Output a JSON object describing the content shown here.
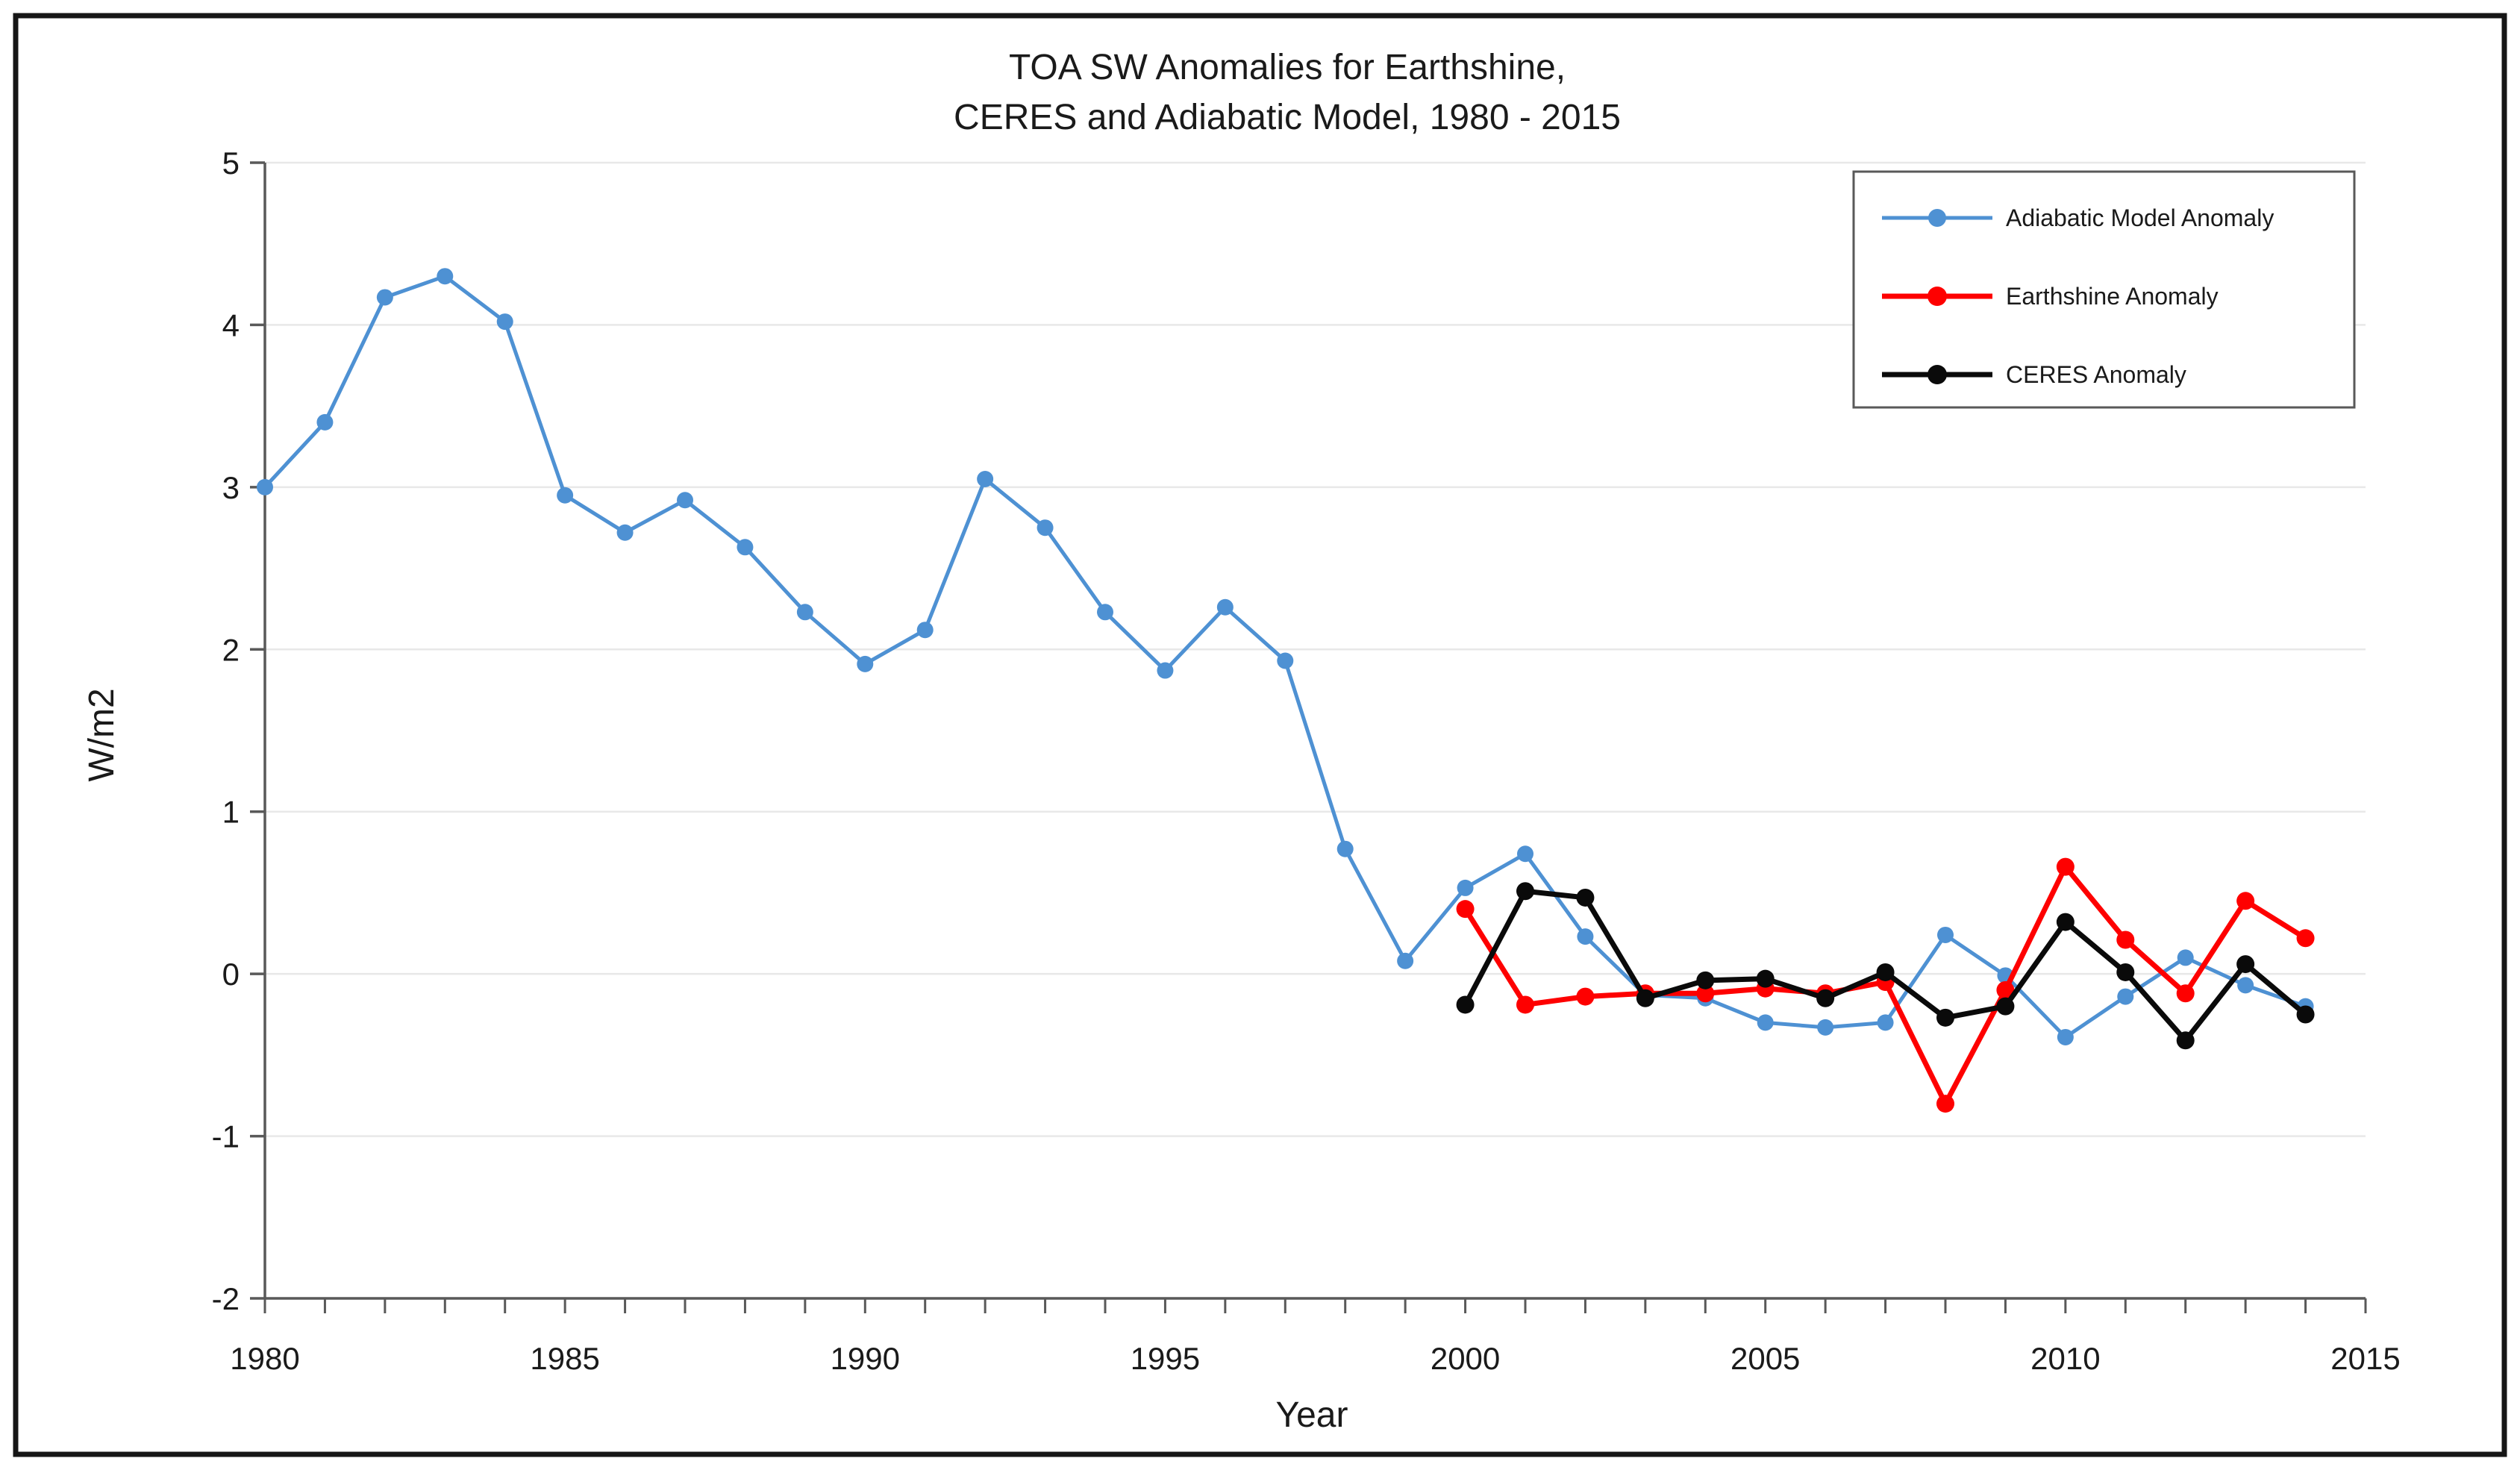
{
  "chart_data": {
    "type": "line",
    "title_line1": "TOA SW Anomalies for Earthshine,",
    "title_line2": "CERES and Adiabatic Model, 1980 - 2015",
    "xlabel": "Year",
    "ylabel": "W/m2",
    "x_range": [
      1980,
      2015
    ],
    "y_range": [
      -2,
      5
    ],
    "y_ticks": [
      5,
      4,
      3,
      2,
      1,
      0,
      -1,
      -2
    ],
    "x_ticks": [
      1980,
      1985,
      1990,
      1995,
      2000,
      2005,
      2010,
      2015
    ],
    "x_minor_tick_step": 1,
    "grid": true,
    "legend_position": "top-right",
    "colors": {
      "grid": "#e8e8e8",
      "axis": "#595959",
      "border": "#161616",
      "legend_border": "#595959",
      "background": "#ffffff"
    },
    "series": [
      {
        "name": "Adiabatic Model Anomaly",
        "color": "#4e91d3",
        "line_width": 5,
        "marker_radius": 11,
        "start_year": 1980,
        "values": [
          3.0,
          3.4,
          4.17,
          4.3,
          4.02,
          2.95,
          2.72,
          2.92,
          2.63,
          2.23,
          1.91,
          2.12,
          3.05,
          2.75,
          2.23,
          1.87,
          2.26,
          1.93,
          0.77,
          0.08,
          0.53,
          0.74,
          0.23,
          -0.13,
          -0.15,
          -0.3,
          -0.33,
          -0.3,
          0.24,
          -0.01,
          -0.39,
          -0.14,
          0.1,
          -0.07,
          -0.2
        ]
      },
      {
        "name": "Earthshine Anomaly",
        "color": "#fe0000",
        "line_width": 7,
        "marker_radius": 12,
        "start_year": 2000,
        "values": [
          0.4,
          -0.19,
          -0.14,
          -0.12,
          -0.12,
          -0.09,
          -0.12,
          -0.05,
          -0.8,
          -0.1,
          0.66,
          0.21,
          -0.12,
          0.45,
          0.22
        ]
      },
      {
        "name": "CERES Anomaly",
        "color": "#0a0a0a",
        "line_width": 7,
        "marker_radius": 12,
        "start_year": 2000,
        "values": [
          -0.19,
          0.51,
          0.47,
          -0.15,
          -0.04,
          -0.03,
          -0.15,
          0.01,
          -0.27,
          -0.2,
          0.32,
          0.01,
          -0.41,
          0.06,
          -0.25
        ]
      }
    ]
  }
}
